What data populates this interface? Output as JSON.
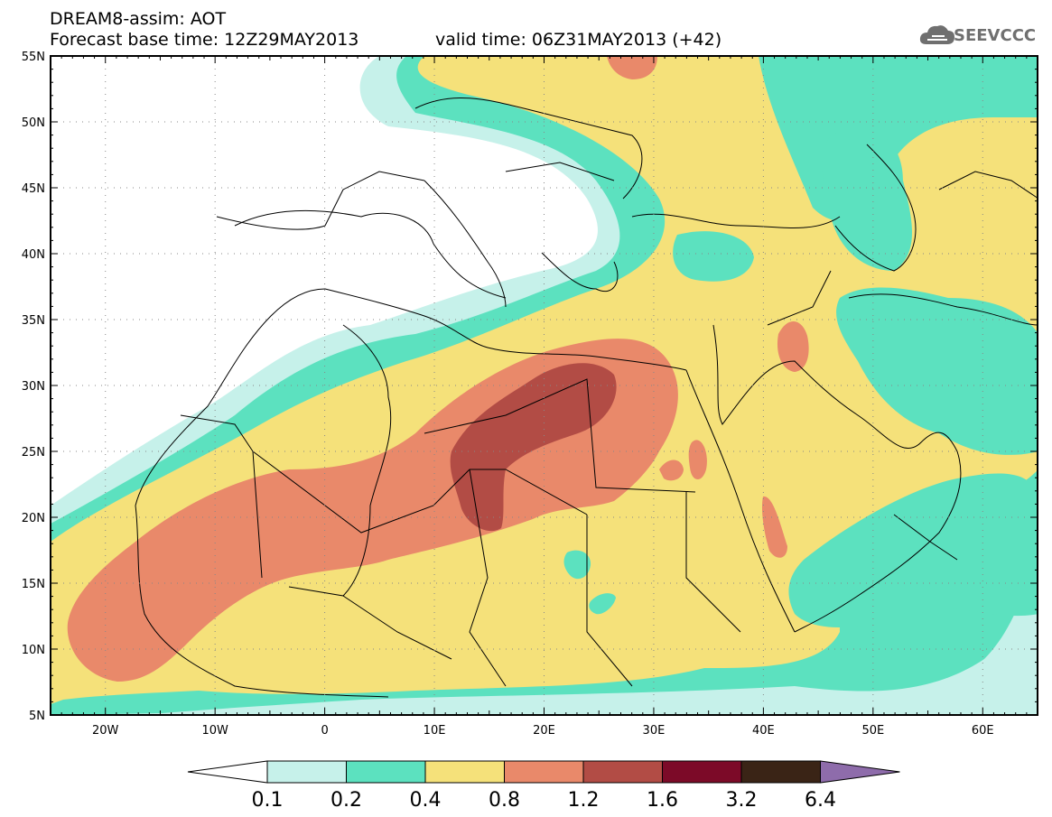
{
  "header": {
    "title": "DREAM8-assim: AOT",
    "base_time": "Forecast base time: 12Z29MAY2013",
    "valid_time": "valid time: 06Z31MAY2013 (+42)"
  },
  "logo": {
    "text": "SEEVCCC",
    "icon": "cloud-icon"
  },
  "map": {
    "lat_labels": [
      "55N",
      "50N",
      "45N",
      "40N",
      "35N",
      "30N",
      "25N",
      "20N",
      "15N",
      "10N",
      "5N"
    ],
    "lon_labels": [
      "20W",
      "10W",
      "0",
      "10E",
      "20E",
      "30E",
      "40E",
      "50E",
      "60E"
    ],
    "grid": "dotted",
    "colors": {
      "c01": "#c6f1ea",
      "c02": "#5ce1bf",
      "c04": "#f5e17a",
      "c08": "#e9896a",
      "c12": "#b24c45",
      "c16": "#7c0a28",
      "c32": "#3a2416",
      "c64": "#8e6cab"
    }
  },
  "colorbar": {
    "labels": [
      "0.1",
      "0.2",
      "0.4",
      "0.8",
      "1.2",
      "1.6",
      "3.2",
      "6.4"
    ],
    "colors": [
      "#ffffff",
      "#c6f1ea",
      "#5ce1bf",
      "#f5e17a",
      "#e9896a",
      "#b24c45",
      "#7c0a28",
      "#3a2416",
      "#8e6cab"
    ]
  }
}
